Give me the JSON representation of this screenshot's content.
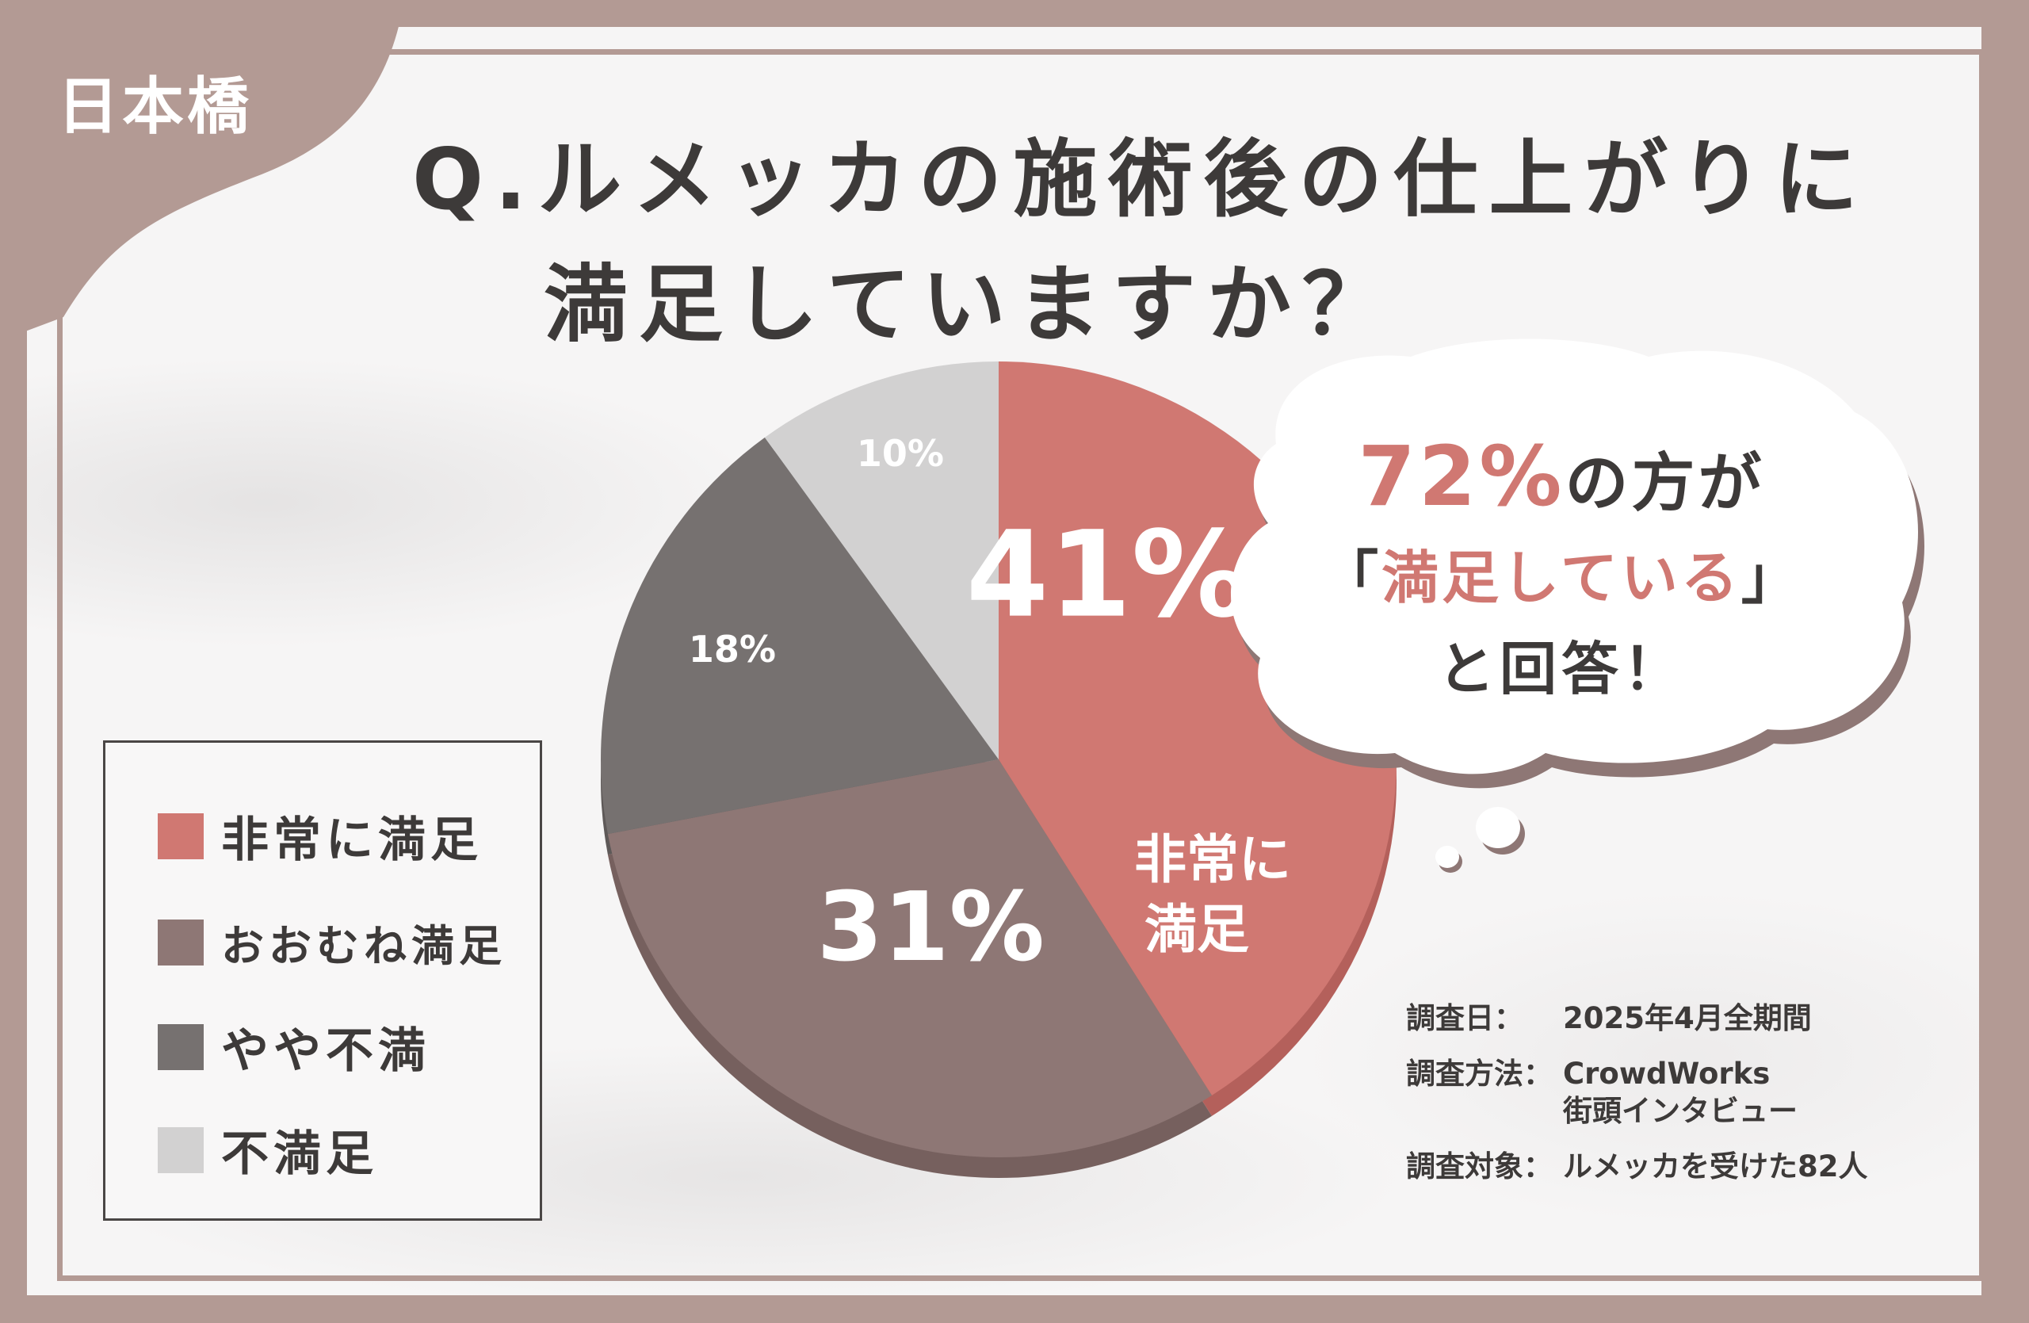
{
  "badge": "日本橋",
  "title": {
    "line1": "Q.ルメッカの施術後の仕上がりに",
    "line2": "満足していますか？"
  },
  "colors": {
    "very_satisfied": "#d07872",
    "mostly_satisfied": "#8e7775",
    "somewhat_unsatisfied": "#767170",
    "unsatisfied": "#d2d1d1",
    "frame": "#b39a94",
    "text": "#3d3a39"
  },
  "chart_data": {
    "type": "pie",
    "categories": [
      "非常に満足",
      "おおむね満足",
      "やや不満",
      "不満足"
    ],
    "values": [
      41,
      31,
      18,
      10
    ],
    "labels": [
      "41%",
      "31%",
      "18%",
      "10%"
    ],
    "slice_caption": [
      "非常に",
      "満足"
    ],
    "legend": [
      "非常に満足",
      "おおむね満足",
      "やや不満",
      "不満足"
    ],
    "legend_placement": "left"
  },
  "callout": {
    "pct": "72%",
    "line1_rest": "の方が",
    "open_bracket": "「",
    "quote": "満足している",
    "close_bracket": "」",
    "line3": "と回答！"
  },
  "survey": {
    "date_key": "調査日：",
    "date_val": "2025年4月全期間",
    "method_key": "調査方法：",
    "method_val1": "CrowdWorks",
    "method_val2": "街頭インタビュー",
    "target_key": "調査対象：",
    "target_val": "ルメッカを受けた82人"
  }
}
